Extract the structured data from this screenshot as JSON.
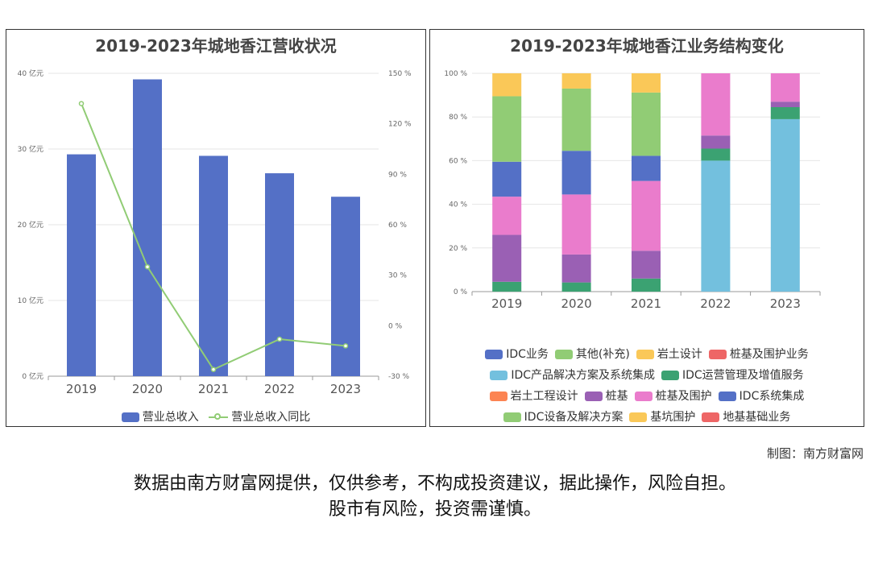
{
  "credit": "制图：南方财富网",
  "disclaimer": {
    "line1": "数据由南方财富网提供，仅供参考，不构成投资建议，据此操作，风险自担。",
    "line2": "股市有风险，投资需谨慎。"
  },
  "chart_data": [
    {
      "type": "bar",
      "title": "2019-2023年城地香江营收状况",
      "categories": [
        "2019",
        "2020",
        "2021",
        "2022",
        "2023"
      ],
      "y_left": {
        "ylim": [
          0,
          40
        ],
        "ticks": [
          "0 亿元",
          "10 亿元",
          "20 亿元",
          "30 亿元",
          "40 亿元"
        ]
      },
      "y_right": {
        "ylim": [
          -30,
          150
        ],
        "ticks": [
          "-30 %",
          "0 %",
          "30 %",
          "60 %",
          "90 %",
          "120 %",
          "150 %"
        ]
      },
      "series": [
        {
          "name": "营业总收入",
          "kind": "bar",
          "axis": "left",
          "color": "#5470c6",
          "values": [
            29.3,
            39.2,
            29.1,
            26.8,
            23.7
          ]
        },
        {
          "name": "营业总收入同比",
          "kind": "line",
          "axis": "right",
          "color": "#91cc75",
          "values": [
            132,
            35,
            -26,
            -8,
            -12
          ]
        }
      ],
      "grid": true,
      "legend_position": "bottom"
    },
    {
      "type": "bar",
      "stacked": true,
      "title": "2019-2023年城地香江业务结构变化",
      "categories": [
        "2019",
        "2020",
        "2021",
        "2022",
        "2023"
      ],
      "ylim": [
        0,
        100
      ],
      "y_ticks": [
        "0 %",
        "20 %",
        "40 %",
        "60 %",
        "80 %",
        "100 %"
      ],
      "series": [
        {
          "name": "IDC业务",
          "color": "#5470c6",
          "values": [
            0,
            0,
            0,
            0,
            0
          ]
        },
        {
          "name": "其他(补充)",
          "color": "#91cc75",
          "values": [
            0,
            0,
            0,
            0,
            0
          ]
        },
        {
          "name": "岩土设计",
          "color": "#fac858",
          "values": [
            0,
            0,
            0,
            0,
            0
          ]
        },
        {
          "name": "桩基及围护业务",
          "color": "#ee6666",
          "values": [
            0,
            0,
            0,
            0,
            0
          ]
        },
        {
          "name": "IDC产品解决方案及系统集成",
          "color": "#73c0de",
          "values": [
            0,
            0,
            0,
            60,
            79
          ]
        },
        {
          "name": "IDC运营管理及增值服务",
          "color": "#3ba272",
          "values": [
            4.5,
            4.2,
            6,
            5.5,
            5.5
          ]
        },
        {
          "name": "岩土工程设计",
          "color": "#fc8452",
          "values": [
            0,
            0,
            0,
            0,
            0
          ]
        },
        {
          "name": "桩基",
          "color": "#9a60b4",
          "values": [
            21.5,
            12.8,
            12.7,
            6,
            2.5
          ]
        },
        {
          "name": "桩基及围护",
          "color": "#ea7ccc",
          "values": [
            17.5,
            27.5,
            32,
            28.5,
            13
          ]
        },
        {
          "name": "IDC系统集成",
          "color": "#5470c6",
          "values": [
            16,
            20,
            11.5,
            0,
            0
          ]
        },
        {
          "name": "IDC设备及解决方案",
          "color": "#91cc75",
          "values": [
            30,
            28.5,
            29,
            0,
            0
          ]
        },
        {
          "name": "基坑围护",
          "color": "#fac858",
          "values": [
            10.5,
            7,
            8.8,
            0,
            0
          ]
        },
        {
          "name": "地基基础业务",
          "color": "#ee6666",
          "values": [
            0,
            0,
            0,
            0,
            0
          ]
        }
      ],
      "legend_rows": [
        [
          "IDC业务",
          "其他(补充)",
          "岩土设计",
          "桩基及围护业务"
        ],
        [
          "IDC产品解决方案及系统集成",
          "IDC运营管理及增值服务"
        ],
        [
          "岩土工程设计",
          "桩基",
          "桩基及围护",
          "IDC系统集成"
        ],
        [
          "IDC设备及解决方案",
          "基坑围护",
          "地基基础业务"
        ]
      ],
      "grid": true,
      "legend_position": "bottom"
    }
  ]
}
